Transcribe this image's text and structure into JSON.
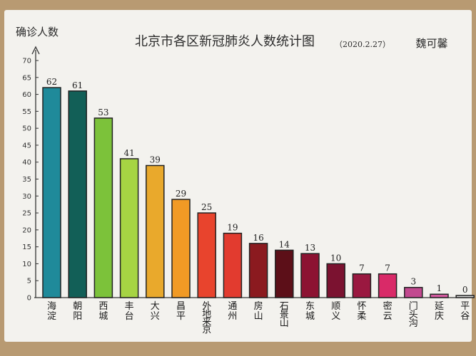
{
  "chart_data": {
    "type": "bar",
    "title": "北京市各区新冠肺炎人数统计图",
    "date": "（2020.2.27）",
    "author": "魏可馨",
    "ylabel": "确诊人数",
    "xlabel": "",
    "ylim": [
      0,
      70
    ],
    "yticks": [
      0,
      5,
      10,
      15,
      20,
      25,
      30,
      35,
      40,
      45,
      50,
      55,
      60,
      65,
      70
    ],
    "categories": [
      "海淀",
      "朝阳",
      "西城",
      "丰台",
      "大兴",
      "昌平",
      "外地来京",
      "通州",
      "房山",
      "石景山",
      "东城",
      "顺义",
      "怀柔",
      "密云",
      "门头沟",
      "延庆",
      "平谷"
    ],
    "values": [
      62,
      61,
      53,
      41,
      39,
      29,
      25,
      19,
      16,
      14,
      13,
      10,
      7,
      7,
      3,
      1,
      0
    ],
    "colors": [
      "#1f8a9a",
      "#125f57",
      "#7cc23a",
      "#a6d443",
      "#e9a92c",
      "#f19a25",
      "#e8442d",
      "#e23b2f",
      "#8b1a1f",
      "#5c0f18",
      "#8c1232",
      "#7b1230",
      "#9a1840",
      "#d92a68",
      "#c2498f",
      "#d45aa0",
      "#dcdcdc"
    ],
    "grid": false,
    "legend": "none"
  }
}
